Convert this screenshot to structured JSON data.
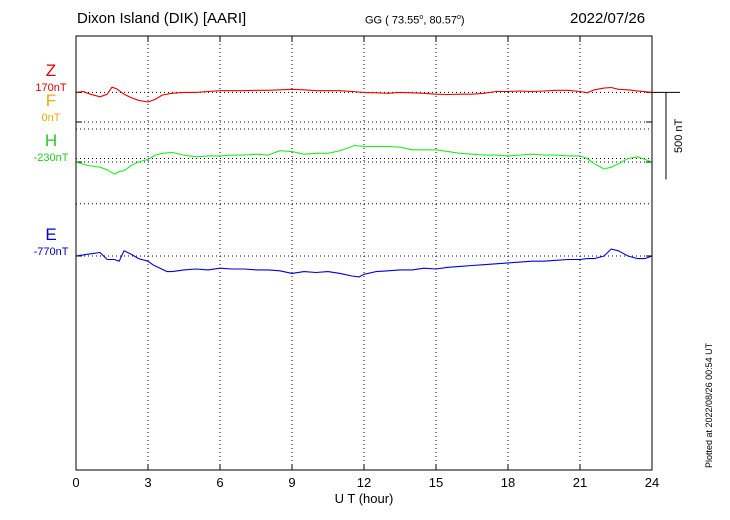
{
  "header": {
    "title": "Dixon Island (DIK)  [AARI]",
    "coords_prefix": "GG ( 73.55",
    "coords_mid": ",  80.57",
    "coords_suffix": ")",
    "degree_mark": "o",
    "date": "2022/07/26"
  },
  "plotted_note": "Plotted at 2022/08/26 00:54 UT",
  "chart_data": {
    "type": "line",
    "xlabel": "U T (hour)",
    "xlim": [
      0,
      24
    ],
    "xticks": [
      0,
      3,
      6,
      9,
      12,
      15,
      18,
      21,
      24
    ],
    "xtick_labels": [
      "0",
      "3",
      "6",
      "9",
      "12",
      "15",
      "18",
      "21",
      "24"
    ],
    "y_unit": "nT",
    "grid": "dotted",
    "scale_bar": {
      "value": 500,
      "label": "500 nT"
    },
    "components": [
      {
        "name": "F",
        "offset_label": "0nT",
        "color": "#f2a900"
      },
      {
        "name": "H",
        "offset_label": "-230nT",
        "color": "#22cc22"
      },
      {
        "name": "E",
        "offset_label": "-770nT",
        "color": "#0000cc"
      },
      {
        "name": "Z",
        "offset_label": "170nT",
        "color": "#dd0000"
      }
    ],
    "series": [
      {
        "name": "H",
        "color": "#22ee22",
        "x": [
          0,
          0.5,
          1,
          1.3,
          1.6,
          1.8,
          2,
          2.3,
          2.6,
          3,
          3.3,
          3.6,
          4,
          4.5,
          5,
          5.5,
          6,
          6.5,
          7,
          7.5,
          8,
          8.5,
          9,
          9.5,
          10,
          10.5,
          11,
          11.3,
          11.6,
          12,
          12.5,
          13,
          13.5,
          14,
          14.5,
          15,
          15.5,
          16,
          16.5,
          17,
          17.5,
          18,
          18.5,
          19,
          19.5,
          20,
          20.5,
          21,
          21.3,
          21.6,
          22,
          22.3,
          22.6,
          23,
          23.4,
          23.7,
          24
        ],
        "y": [
          -230,
          -250,
          -260,
          -275,
          -300,
          -285,
          -280,
          -250,
          -230,
          -215,
          -190,
          -180,
          -175,
          -190,
          -200,
          -195,
          -195,
          -190,
          -190,
          -185,
          -190,
          -165,
          -170,
          -185,
          -180,
          -180,
          -165,
          -150,
          -135,
          -140,
          -140,
          -140,
          -145,
          -160,
          -160,
          -160,
          -170,
          -180,
          -185,
          -190,
          -190,
          -195,
          -190,
          -185,
          -190,
          -190,
          -195,
          -195,
          -210,
          -240,
          -270,
          -260,
          -240,
          -210,
          -200,
          -215,
          -230
        ]
      },
      {
        "name": "E",
        "color": "#0000dd",
        "x": [
          0,
          0.5,
          1,
          1.3,
          1.6,
          1.8,
          2,
          2.3,
          2.6,
          3,
          3.2,
          3.5,
          3.8,
          4,
          4.5,
          5,
          5.5,
          6,
          6.5,
          7,
          7.5,
          8,
          8.5,
          9,
          9.5,
          10,
          10.5,
          11,
          11.5,
          11.8,
          12,
          12.5,
          13,
          13.5,
          14,
          14.5,
          15,
          15.5,
          16,
          16.5,
          17,
          17.5,
          18,
          18.5,
          19,
          19.5,
          20,
          20.5,
          21,
          21.3,
          21.6,
          22,
          22.3,
          22.6,
          23,
          23.4,
          23.7,
          24
        ],
        "y": [
          -770,
          -760,
          -750,
          -790,
          -790,
          -800,
          -740,
          -760,
          -785,
          -800,
          -820,
          -840,
          -860,
          -860,
          -850,
          -845,
          -850,
          -840,
          -845,
          -845,
          -850,
          -850,
          -855,
          -870,
          -860,
          -865,
          -860,
          -870,
          -885,
          -890,
          -875,
          -860,
          -855,
          -850,
          -850,
          -840,
          -845,
          -835,
          -830,
          -825,
          -820,
          -815,
          -810,
          -805,
          -800,
          -800,
          -795,
          -790,
          -790,
          -785,
          -785,
          -770,
          -730,
          -740,
          -770,
          -785,
          -785,
          -770
        ]
      },
      {
        "name": "Z",
        "color": "#ee0000",
        "x": [
          0,
          0.3,
          0.6,
          1,
          1.3,
          1.5,
          1.7,
          2,
          2.3,
          2.6,
          3,
          3.3,
          3.6,
          4,
          4.5,
          5,
          5.5,
          6,
          6.5,
          7,
          7.5,
          8,
          8.5,
          9,
          9.5,
          10,
          10.5,
          11,
          11.5,
          12,
          12.5,
          13,
          13.5,
          14,
          14.5,
          15,
          15.5,
          16,
          16.5,
          17,
          17.5,
          18,
          18.5,
          19,
          19.5,
          20,
          20.5,
          21,
          21.3,
          21.6,
          22,
          22.3,
          22.6,
          23,
          23.3,
          23.6,
          24
        ],
        "y": [
          170,
          175,
          160,
          145,
          160,
          200,
          190,
          160,
          140,
          125,
          115,
          130,
          155,
          165,
          170,
          170,
          175,
          180,
          180,
          180,
          182,
          182,
          185,
          188,
          185,
          180,
          180,
          180,
          175,
          170,
          168,
          165,
          170,
          168,
          165,
          160,
          158,
          160,
          160,
          165,
          175,
          175,
          178,
          175,
          178,
          182,
          182,
          175,
          168,
          185,
          195,
          198,
          188,
          185,
          180,
          176,
          170
        ]
      }
    ]
  }
}
